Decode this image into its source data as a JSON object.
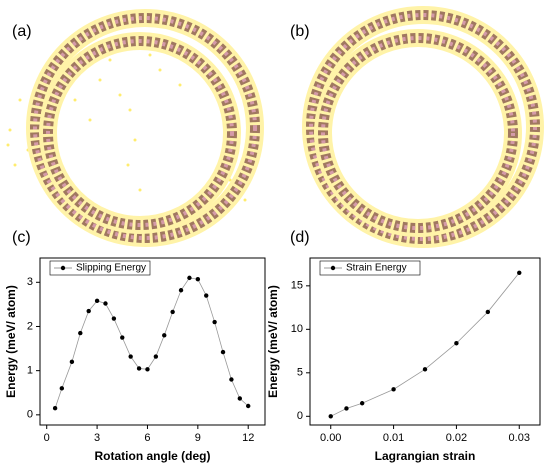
{
  "panel_labels": [
    "(a)",
    "(b)",
    "(c)",
    "(d)"
  ],
  "chart_data": [
    {
      "type": "line",
      "xlabel": "Rotation angle (deg)",
      "ylabel": "Energy (meV/ atom)",
      "xlim": [
        -0.4,
        13
      ],
      "ylim": [
        -0.23,
        3.55
      ],
      "xticks": [
        0,
        3,
        6,
        9,
        12
      ],
      "yticks": [
        0,
        1,
        2,
        3
      ],
      "legend": "upper left",
      "series": [
        {
          "name": "Slipping Energy",
          "color": "#000000",
          "x": [
            0.5,
            0.9,
            1.5,
            2.0,
            2.5,
            3.0,
            3.5,
            4.0,
            4.5,
            5.0,
            5.5,
            6.0,
            6.5,
            7.0,
            7.5,
            8.0,
            8.5,
            9.0,
            9.5,
            10.0,
            10.5,
            11.0,
            11.5,
            12.0
          ],
          "values": [
            0.15,
            0.6,
            1.2,
            1.85,
            2.35,
            2.58,
            2.52,
            2.18,
            1.75,
            1.32,
            1.05,
            1.03,
            1.32,
            1.8,
            2.33,
            2.82,
            3.1,
            3.07,
            2.7,
            2.1,
            1.42,
            0.8,
            0.37,
            0.2
          ]
        }
      ]
    },
    {
      "type": "line",
      "xlabel": "Lagrangian strain",
      "ylabel": "Energy (meV/ atom)",
      "xlim": [
        -0.0033,
        0.0333
      ],
      "ylim": [
        -1,
        18.2
      ],
      "xticks": [
        {
          "value": 0,
          "label": "0.00"
        },
        0.01,
        0.02,
        0.03
      ],
      "yticks": [
        0,
        5,
        10,
        15
      ],
      "legend": "upper left",
      "series": [
        {
          "name": "Strain Energy",
          "color": "#000000",
          "x": [
            0,
            0.0025,
            0.005,
            0.01,
            0.015,
            0.02,
            0.025,
            0.03
          ],
          "values": [
            0,
            0.9,
            1.5,
            3.1,
            5.4,
            8.4,
            12.0,
            16.5
          ]
        }
      ]
    }
  ]
}
